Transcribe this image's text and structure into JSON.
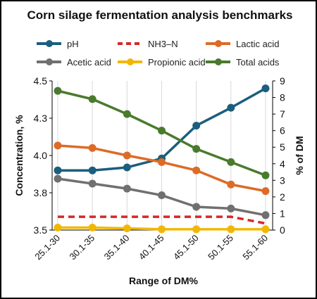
{
  "chart_data": {
    "type": "line",
    "title": "Corn silage fermentation analysis benchmarks",
    "xlabel": "Range of DM%",
    "ylabel": "Concentration, %",
    "ylabel_right": "% of DM",
    "categories": [
      "25.1-30",
      "30.1-35",
      "35.1-40",
      "40.1-45",
      "45.1-50",
      "50.1-55",
      "55.1-60"
    ],
    "y_left": {
      "ylim": [
        3.5,
        4.5
      ],
      "ticks": [
        "3.5",
        "3.8",
        "4.0",
        "4.3",
        "4.5"
      ],
      "tick_values": [
        3.5,
        3.75,
        4.0,
        4.25,
        4.5
      ]
    },
    "y_right": {
      "ylim": [
        0,
        9
      ],
      "ticks": [
        "0",
        "1",
        "2",
        "3",
        "4",
        "5",
        "6",
        "7",
        "8",
        "9"
      ]
    },
    "legend_position": "top",
    "grid": "vertical",
    "series": [
      {
        "name": "pH",
        "axis": "left",
        "color": "#1b5e7e",
        "style": "solid",
        "markers": true,
        "values": [
          3.9,
          3.9,
          3.92,
          3.98,
          4.2,
          4.32,
          4.45
        ]
      },
      {
        "name": "NH3–N",
        "axis": "right",
        "color": "#d62828",
        "style": "dashed",
        "markers": false,
        "values": [
          0.8,
          0.8,
          0.8,
          0.8,
          0.8,
          0.8,
          0.4
        ]
      },
      {
        "name": "Lactic acid",
        "axis": "right",
        "color": "#dd6b26",
        "style": "solid",
        "markers": true,
        "values": [
          5.1,
          4.95,
          4.5,
          4.1,
          3.6,
          2.75,
          2.35
        ]
      },
      {
        "name": "Acetic acid",
        "axis": "right",
        "color": "#707070",
        "style": "solid",
        "markers": true,
        "values": [
          3.1,
          2.8,
          2.5,
          2.1,
          1.4,
          1.3,
          0.9
        ]
      },
      {
        "name": "Propionic acid",
        "axis": "right",
        "color": "#f2b705",
        "style": "solid",
        "markers": true,
        "values": [
          0.15,
          0.15,
          0.1,
          0.05,
          0.05,
          0.05,
          0.05
        ]
      },
      {
        "name": "Total acids",
        "axis": "right",
        "color": "#4a7a2e",
        "style": "solid",
        "markers": true,
        "values": [
          8.4,
          7.9,
          7.0,
          6.0,
          4.9,
          4.1,
          3.3
        ]
      }
    ]
  }
}
